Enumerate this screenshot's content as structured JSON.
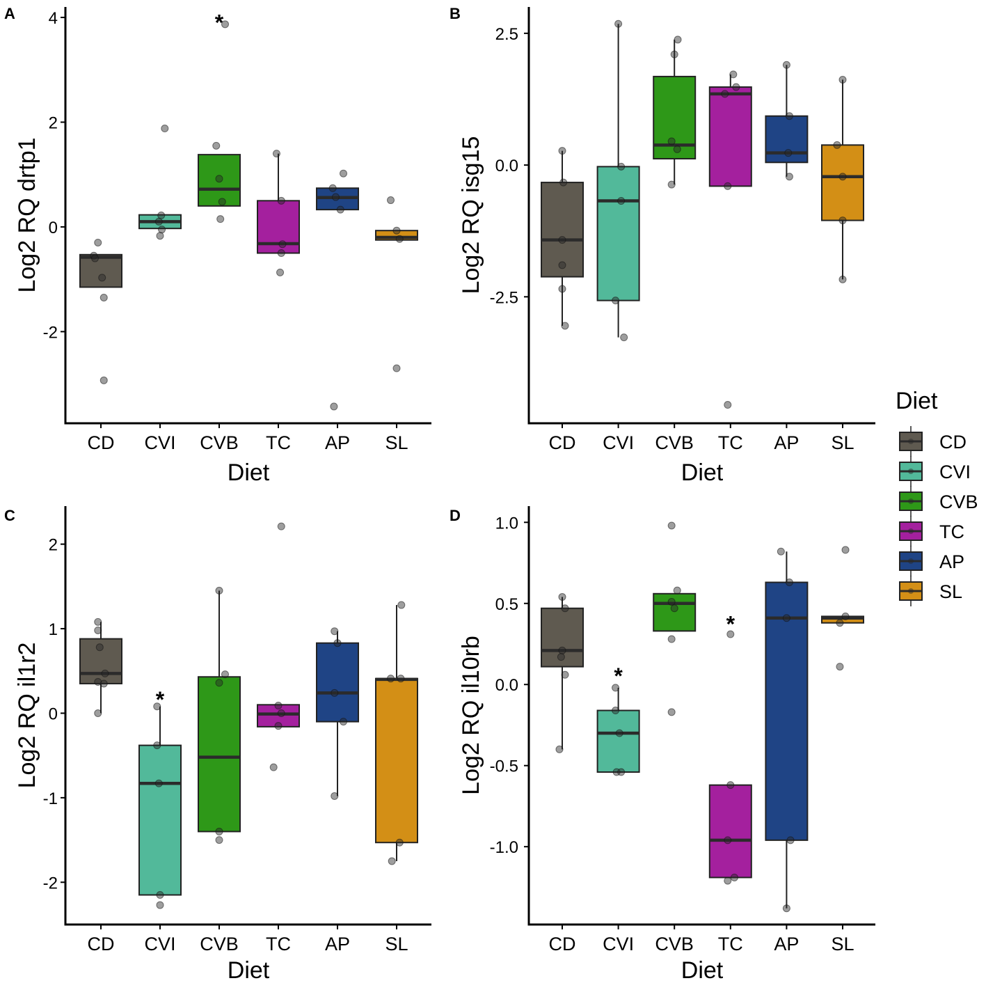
{
  "legend": {
    "title": "Diet",
    "entries": [
      "CD",
      "CVI",
      "CVB",
      "TC",
      "AP",
      "SL"
    ]
  },
  "colors": {
    "CD": "#5f5a50",
    "CVI": "#52b99a",
    "CVB": "#2e9818",
    "TC": "#a4209e",
    "AP": "#1f4485",
    "SL": "#d38f16"
  },
  "chart_data": [
    {
      "panel": "A",
      "type": "box",
      "xlabel": "Diet",
      "ylabel": "Log2 RQ drtp1",
      "categories": [
        "CD",
        "CVI",
        "CVB",
        "TC",
        "AP",
        "SL"
      ],
      "ylim": [
        -3.75,
        4.2
      ],
      "yticks": [
        -2,
        0,
        2,
        4
      ],
      "ytick_labels": [
        "-2",
        "0",
        "2",
        "4"
      ],
      "boxes": [
        {
          "cat": "CD",
          "q1": -1.15,
          "median": -0.58,
          "q3": -0.53,
          "wlo": -1.15,
          "whi": -0.53
        },
        {
          "cat": "CVI",
          "q1": -0.03,
          "median": 0.1,
          "q3": 0.23,
          "wlo": -0.03,
          "whi": 0.23
        },
        {
          "cat": "CVB",
          "q1": 0.4,
          "median": 0.72,
          "q3": 1.38,
          "wlo": 0.4,
          "whi": 1.38
        },
        {
          "cat": "TC",
          "q1": -0.5,
          "median": -0.32,
          "q3": 0.5,
          "wlo": -0.5,
          "whi": 1.4
        },
        {
          "cat": "AP",
          "q1": 0.33,
          "median": 0.56,
          "q3": 0.74,
          "wlo": 0.33,
          "whi": 0.74
        },
        {
          "cat": "SL",
          "q1": -0.25,
          "median": -0.2,
          "q3": -0.07,
          "wlo": -0.25,
          "whi": -0.07
        }
      ],
      "points": [
        {
          "cat": "CD",
          "dx": -0.12,
          "y": -0.55
        },
        {
          "cat": "CD",
          "dx": -0.05,
          "y": -0.3
        },
        {
          "cat": "CD",
          "dx": -0.1,
          "y": -0.6
        },
        {
          "cat": "CD",
          "dx": 0.02,
          "y": -0.97
        },
        {
          "cat": "CD",
          "dx": 0.05,
          "y": -1.35
        },
        {
          "cat": "CD",
          "dx": 0.05,
          "y": -2.93
        },
        {
          "cat": "CVI",
          "dx": 0.08,
          "y": 1.88
        },
        {
          "cat": "CVI",
          "dx": 0.02,
          "y": 0.22
        },
        {
          "cat": "CVI",
          "dx": -0.02,
          "y": 0.1
        },
        {
          "cat": "CVI",
          "dx": 0.03,
          "y": -0.05
        },
        {
          "cat": "CVI",
          "dx": 0.0,
          "y": -0.17
        },
        {
          "cat": "CVB",
          "dx": 0.1,
          "y": 3.87
        },
        {
          "cat": "CVB",
          "dx": -0.05,
          "y": 1.55
        },
        {
          "cat": "CVB",
          "dx": 0.0,
          "y": 0.92
        },
        {
          "cat": "CVB",
          "dx": 0.05,
          "y": 0.48
        },
        {
          "cat": "CVB",
          "dx": 0.02,
          "y": 0.15
        },
        {
          "cat": "TC",
          "dx": -0.03,
          "y": 1.4
        },
        {
          "cat": "TC",
          "dx": 0.05,
          "y": 0.5
        },
        {
          "cat": "TC",
          "dx": 0.07,
          "y": -0.33
        },
        {
          "cat": "TC",
          "dx": 0.05,
          "y": -0.5
        },
        {
          "cat": "TC",
          "dx": 0.03,
          "y": -0.87
        },
        {
          "cat": "AP",
          "dx": 0.1,
          "y": 1.02
        },
        {
          "cat": "AP",
          "dx": -0.08,
          "y": 0.74
        },
        {
          "cat": "AP",
          "dx": -0.03,
          "y": 0.57
        },
        {
          "cat": "AP",
          "dx": 0.05,
          "y": 0.33
        },
        {
          "cat": "AP",
          "dx": -0.06,
          "y": -3.43
        },
        {
          "cat": "SL",
          "dx": -0.1,
          "y": 0.51
        },
        {
          "cat": "SL",
          "dx": 0.0,
          "y": -0.07
        },
        {
          "cat": "SL",
          "dx": 0.05,
          "y": -0.23
        },
        {
          "cat": "SL",
          "dx": 0.0,
          "y": -2.7
        }
      ],
      "annotations": [
        {
          "cat": "CVB",
          "text": "*",
          "y": 4.05
        }
      ]
    },
    {
      "panel": "B",
      "type": "box",
      "xlabel": "Diet",
      "ylabel": "Log2 RQ isg15",
      "categories": [
        "CD",
        "CVI",
        "CVB",
        "TC",
        "AP",
        "SL"
      ],
      "ylim": [
        -4.9,
        3.0
      ],
      "yticks": [
        -2.5,
        0,
        2.5
      ],
      "ytick_labels": [
        "-2.5",
        "0.0",
        "2.5"
      ],
      "boxes": [
        {
          "cat": "CD",
          "q1": -2.12,
          "median": -1.42,
          "q3": -0.33,
          "wlo": -3.05,
          "whi": 0.27
        },
        {
          "cat": "CVI",
          "q1": -2.57,
          "median": -0.68,
          "q3": -0.03,
          "wlo": -3.27,
          "whi": 2.68
        },
        {
          "cat": "CVB",
          "q1": 0.12,
          "median": 0.38,
          "q3": 1.68,
          "wlo": -0.37,
          "whi": 2.38
        },
        {
          "cat": "TC",
          "q1": -0.4,
          "median": 1.35,
          "q3": 1.48,
          "wlo": -0.4,
          "whi": 1.72
        },
        {
          "cat": "AP",
          "q1": 0.05,
          "median": 0.23,
          "q3": 0.93,
          "wlo": -0.22,
          "whi": 1.9
        },
        {
          "cat": "SL",
          "q1": -1.05,
          "median": -0.22,
          "q3": 0.38,
          "wlo": -2.17,
          "whi": 1.62
        }
      ],
      "points": [
        {
          "cat": "CD",
          "dx": 0.0,
          "y": 0.27
        },
        {
          "cat": "CD",
          "dx": 0.02,
          "y": -0.33
        },
        {
          "cat": "CD",
          "dx": 0.0,
          "y": -1.42
        },
        {
          "cat": "CD",
          "dx": 0.0,
          "y": -1.9
        },
        {
          "cat": "CD",
          "dx": 0.0,
          "y": -2.35
        },
        {
          "cat": "CD",
          "dx": 0.05,
          "y": -3.05
        },
        {
          "cat": "CVI",
          "dx": 0.0,
          "y": 2.68
        },
        {
          "cat": "CVI",
          "dx": 0.05,
          "y": -0.03
        },
        {
          "cat": "CVI",
          "dx": 0.05,
          "y": -0.68
        },
        {
          "cat": "CVI",
          "dx": -0.05,
          "y": -2.57
        },
        {
          "cat": "CVI",
          "dx": 0.1,
          "y": -3.27
        },
        {
          "cat": "CVB",
          "dx": 0.06,
          "y": 2.38
        },
        {
          "cat": "CVB",
          "dx": 0.0,
          "y": 2.1
        },
        {
          "cat": "CVB",
          "dx": -0.05,
          "y": 0.45
        },
        {
          "cat": "CVB",
          "dx": 0.05,
          "y": 0.3
        },
        {
          "cat": "CVB",
          "dx": -0.05,
          "y": -0.37
        },
        {
          "cat": "TC",
          "dx": 0.05,
          "y": 1.72
        },
        {
          "cat": "TC",
          "dx": 0.1,
          "y": 1.48
        },
        {
          "cat": "TC",
          "dx": -0.1,
          "y": 1.35
        },
        {
          "cat": "TC",
          "dx": -0.05,
          "y": -0.4
        },
        {
          "cat": "TC",
          "dx": -0.05,
          "y": -4.55
        },
        {
          "cat": "AP",
          "dx": 0.0,
          "y": 1.9
        },
        {
          "cat": "AP",
          "dx": 0.05,
          "y": 0.93
        },
        {
          "cat": "AP",
          "dx": 0.03,
          "y": 0.23
        },
        {
          "cat": "AP",
          "dx": 0.05,
          "y": -0.22
        },
        {
          "cat": "SL",
          "dx": 0.0,
          "y": 1.62
        },
        {
          "cat": "SL",
          "dx": -0.1,
          "y": 0.38
        },
        {
          "cat": "SL",
          "dx": 0.0,
          "y": -0.22
        },
        {
          "cat": "SL",
          "dx": 0.0,
          "y": -1.05
        },
        {
          "cat": "SL",
          "dx": 0.0,
          "y": -2.17
        }
      ],
      "annotations": []
    },
    {
      "panel": "C",
      "type": "box",
      "xlabel": "Diet",
      "ylabel": "Log2 RQ il1r2",
      "categories": [
        "CD",
        "CVI",
        "CVB",
        "TC",
        "AP",
        "SL"
      ],
      "ylim": [
        -2.5,
        2.45
      ],
      "yticks": [
        -2,
        -1,
        0,
        1,
        2
      ],
      "ytick_labels": [
        "-2",
        "-1",
        "0",
        "1",
        "2"
      ],
      "boxes": [
        {
          "cat": "CD",
          "q1": 0.35,
          "median": 0.47,
          "q3": 0.88,
          "wlo": 0.0,
          "whi": 1.08
        },
        {
          "cat": "CVI",
          "q1": -2.15,
          "median": -0.83,
          "q3": -0.38,
          "wlo": -2.15,
          "whi": 0.08
        },
        {
          "cat": "CVB",
          "q1": -1.4,
          "median": -0.52,
          "q3": 0.43,
          "wlo": -1.4,
          "whi": 1.45
        },
        {
          "cat": "TC",
          "q1": -0.16,
          "median": -0.01,
          "q3": 0.1,
          "wlo": -0.16,
          "whi": 0.1
        },
        {
          "cat": "AP",
          "q1": -0.1,
          "median": 0.24,
          "q3": 0.83,
          "wlo": -0.98,
          "whi": 0.97
        },
        {
          "cat": "SL",
          "q1": -1.53,
          "median": 0.4,
          "q3": 0.41,
          "wlo": -1.75,
          "whi": 1.28
        }
      ],
      "points": [
        {
          "cat": "CD",
          "dx": -0.05,
          "y": 1.08
        },
        {
          "cat": "CD",
          "dx": -0.05,
          "y": 0.98
        },
        {
          "cat": "CD",
          "dx": -0.02,
          "y": 0.78
        },
        {
          "cat": "CD",
          "dx": 0.07,
          "y": 0.47
        },
        {
          "cat": "CD",
          "dx": -0.05,
          "y": 0.37
        },
        {
          "cat": "CD",
          "dx": 0.05,
          "y": 0.35
        },
        {
          "cat": "CD",
          "dx": -0.05,
          "y": 0.0
        },
        {
          "cat": "CVI",
          "dx": -0.05,
          "y": 0.08
        },
        {
          "cat": "CVI",
          "dx": -0.05,
          "y": -0.38
        },
        {
          "cat": "CVI",
          "dx": -0.02,
          "y": -0.83
        },
        {
          "cat": "CVI",
          "dx": 0.0,
          "y": -2.15
        },
        {
          "cat": "CVI",
          "dx": 0.0,
          "y": -2.27
        },
        {
          "cat": "CVB",
          "dx": 0.0,
          "y": 1.45
        },
        {
          "cat": "CVB",
          "dx": 0.1,
          "y": 0.46
        },
        {
          "cat": "CVB",
          "dx": 0.0,
          "y": 0.36
        },
        {
          "cat": "CVB",
          "dx": 0.0,
          "y": -1.4
        },
        {
          "cat": "CVB",
          "dx": 0.0,
          "y": -1.5
        },
        {
          "cat": "TC",
          "dx": 0.05,
          "y": 2.21
        },
        {
          "cat": "TC",
          "dx": 0.0,
          "y": 0.09
        },
        {
          "cat": "TC",
          "dx": 0.05,
          "y": 0.0
        },
        {
          "cat": "TC",
          "dx": 0.0,
          "y": -0.15
        },
        {
          "cat": "TC",
          "dx": -0.08,
          "y": -0.64
        },
        {
          "cat": "AP",
          "dx": -0.05,
          "y": 0.97
        },
        {
          "cat": "AP",
          "dx": 0.0,
          "y": 0.83
        },
        {
          "cat": "AP",
          "dx": -0.05,
          "y": 0.24
        },
        {
          "cat": "AP",
          "dx": 0.1,
          "y": -0.1
        },
        {
          "cat": "AP",
          "dx": -0.05,
          "y": -0.98
        },
        {
          "cat": "SL",
          "dx": 0.08,
          "y": 1.28
        },
        {
          "cat": "SL",
          "dx": -0.1,
          "y": 0.41
        },
        {
          "cat": "SL",
          "dx": 0.07,
          "y": 0.41
        },
        {
          "cat": "SL",
          "dx": 0.05,
          "y": -1.53
        },
        {
          "cat": "SL",
          "dx": -0.08,
          "y": -1.75
        }
      ],
      "annotations": [
        {
          "cat": "CVI",
          "text": "*",
          "y": 0.25
        }
      ]
    },
    {
      "panel": "D",
      "type": "box",
      "xlabel": "Diet",
      "ylabel": "Log2 RQ il10rb",
      "categories": [
        "CD",
        "CVI",
        "CVB",
        "TC",
        "AP",
        "SL"
      ],
      "ylim": [
        -1.48,
        1.1
      ],
      "yticks": [
        -1.0,
        -0.5,
        0.0,
        0.5,
        1.0
      ],
      "ytick_labels": [
        "-1.0",
        "-0.5",
        "0.0",
        "0.5",
        "1.0"
      ],
      "boxes": [
        {
          "cat": "CD",
          "q1": 0.11,
          "median": 0.21,
          "q3": 0.47,
          "wlo": -0.4,
          "whi": 0.54
        },
        {
          "cat": "CVI",
          "q1": -0.54,
          "median": -0.3,
          "q3": -0.16,
          "wlo": -0.54,
          "whi": -0.02
        },
        {
          "cat": "CVB",
          "q1": 0.33,
          "median": 0.5,
          "q3": 0.56,
          "wlo": 0.33,
          "whi": 0.56
        },
        {
          "cat": "TC",
          "q1": -1.19,
          "median": -0.96,
          "q3": -0.62,
          "wlo": -1.19,
          "whi": -0.62
        },
        {
          "cat": "AP",
          "q1": -0.96,
          "median": 0.41,
          "q3": 0.63,
          "wlo": -1.38,
          "whi": 0.82
        },
        {
          "cat": "SL",
          "q1": 0.38,
          "median": 0.41,
          "q3": 0.42,
          "wlo": 0.38,
          "whi": 0.42
        }
      ],
      "points": [
        {
          "cat": "CD",
          "dx": 0.0,
          "y": 0.54
        },
        {
          "cat": "CD",
          "dx": 0.05,
          "y": 0.47
        },
        {
          "cat": "CD",
          "dx": 0.0,
          "y": 0.21
        },
        {
          "cat": "CD",
          "dx": -0.02,
          "y": 0.17
        },
        {
          "cat": "CD",
          "dx": 0.05,
          "y": 0.06
        },
        {
          "cat": "CD",
          "dx": -0.05,
          "y": -0.4
        },
        {
          "cat": "CVI",
          "dx": -0.05,
          "y": -0.02
        },
        {
          "cat": "CVI",
          "dx": -0.05,
          "y": -0.16
        },
        {
          "cat": "CVI",
          "dx": 0.02,
          "y": -0.3
        },
        {
          "cat": "CVI",
          "dx": -0.03,
          "y": -0.54
        },
        {
          "cat": "CVI",
          "dx": 0.05,
          "y": -0.54
        },
        {
          "cat": "CVB",
          "dx": -0.05,
          "y": 0.98
        },
        {
          "cat": "CVB",
          "dx": 0.05,
          "y": 0.58
        },
        {
          "cat": "CVB",
          "dx": -0.05,
          "y": 0.51
        },
        {
          "cat": "CVB",
          "dx": 0.0,
          "y": 0.47
        },
        {
          "cat": "CVB",
          "dx": -0.05,
          "y": 0.28
        },
        {
          "cat": "CVB",
          "dx": -0.05,
          "y": -0.17
        },
        {
          "cat": "TC",
          "dx": 0.0,
          "y": 0.31
        },
        {
          "cat": "TC",
          "dx": 0.0,
          "y": -0.62
        },
        {
          "cat": "TC",
          "dx": -0.05,
          "y": -0.96
        },
        {
          "cat": "TC",
          "dx": 0.07,
          "y": -1.19
        },
        {
          "cat": "TC",
          "dx": -0.05,
          "y": -1.21
        },
        {
          "cat": "AP",
          "dx": -0.1,
          "y": 0.82
        },
        {
          "cat": "AP",
          "dx": 0.05,
          "y": 0.63
        },
        {
          "cat": "AP",
          "dx": 0.0,
          "y": 0.41
        },
        {
          "cat": "AP",
          "dx": 0.07,
          "y": -0.96
        },
        {
          "cat": "AP",
          "dx": 0.0,
          "y": -1.38
        },
        {
          "cat": "SL",
          "dx": 0.05,
          "y": 0.83
        },
        {
          "cat": "SL",
          "dx": 0.05,
          "y": 0.42
        },
        {
          "cat": "SL",
          "dx": -0.05,
          "y": 0.38
        },
        {
          "cat": "SL",
          "dx": -0.05,
          "y": 0.11
        }
      ],
      "annotations": [
        {
          "cat": "CVI",
          "text": "*",
          "y": 0.1
        },
        {
          "cat": "TC",
          "text": "*",
          "y": 0.42
        }
      ]
    }
  ]
}
